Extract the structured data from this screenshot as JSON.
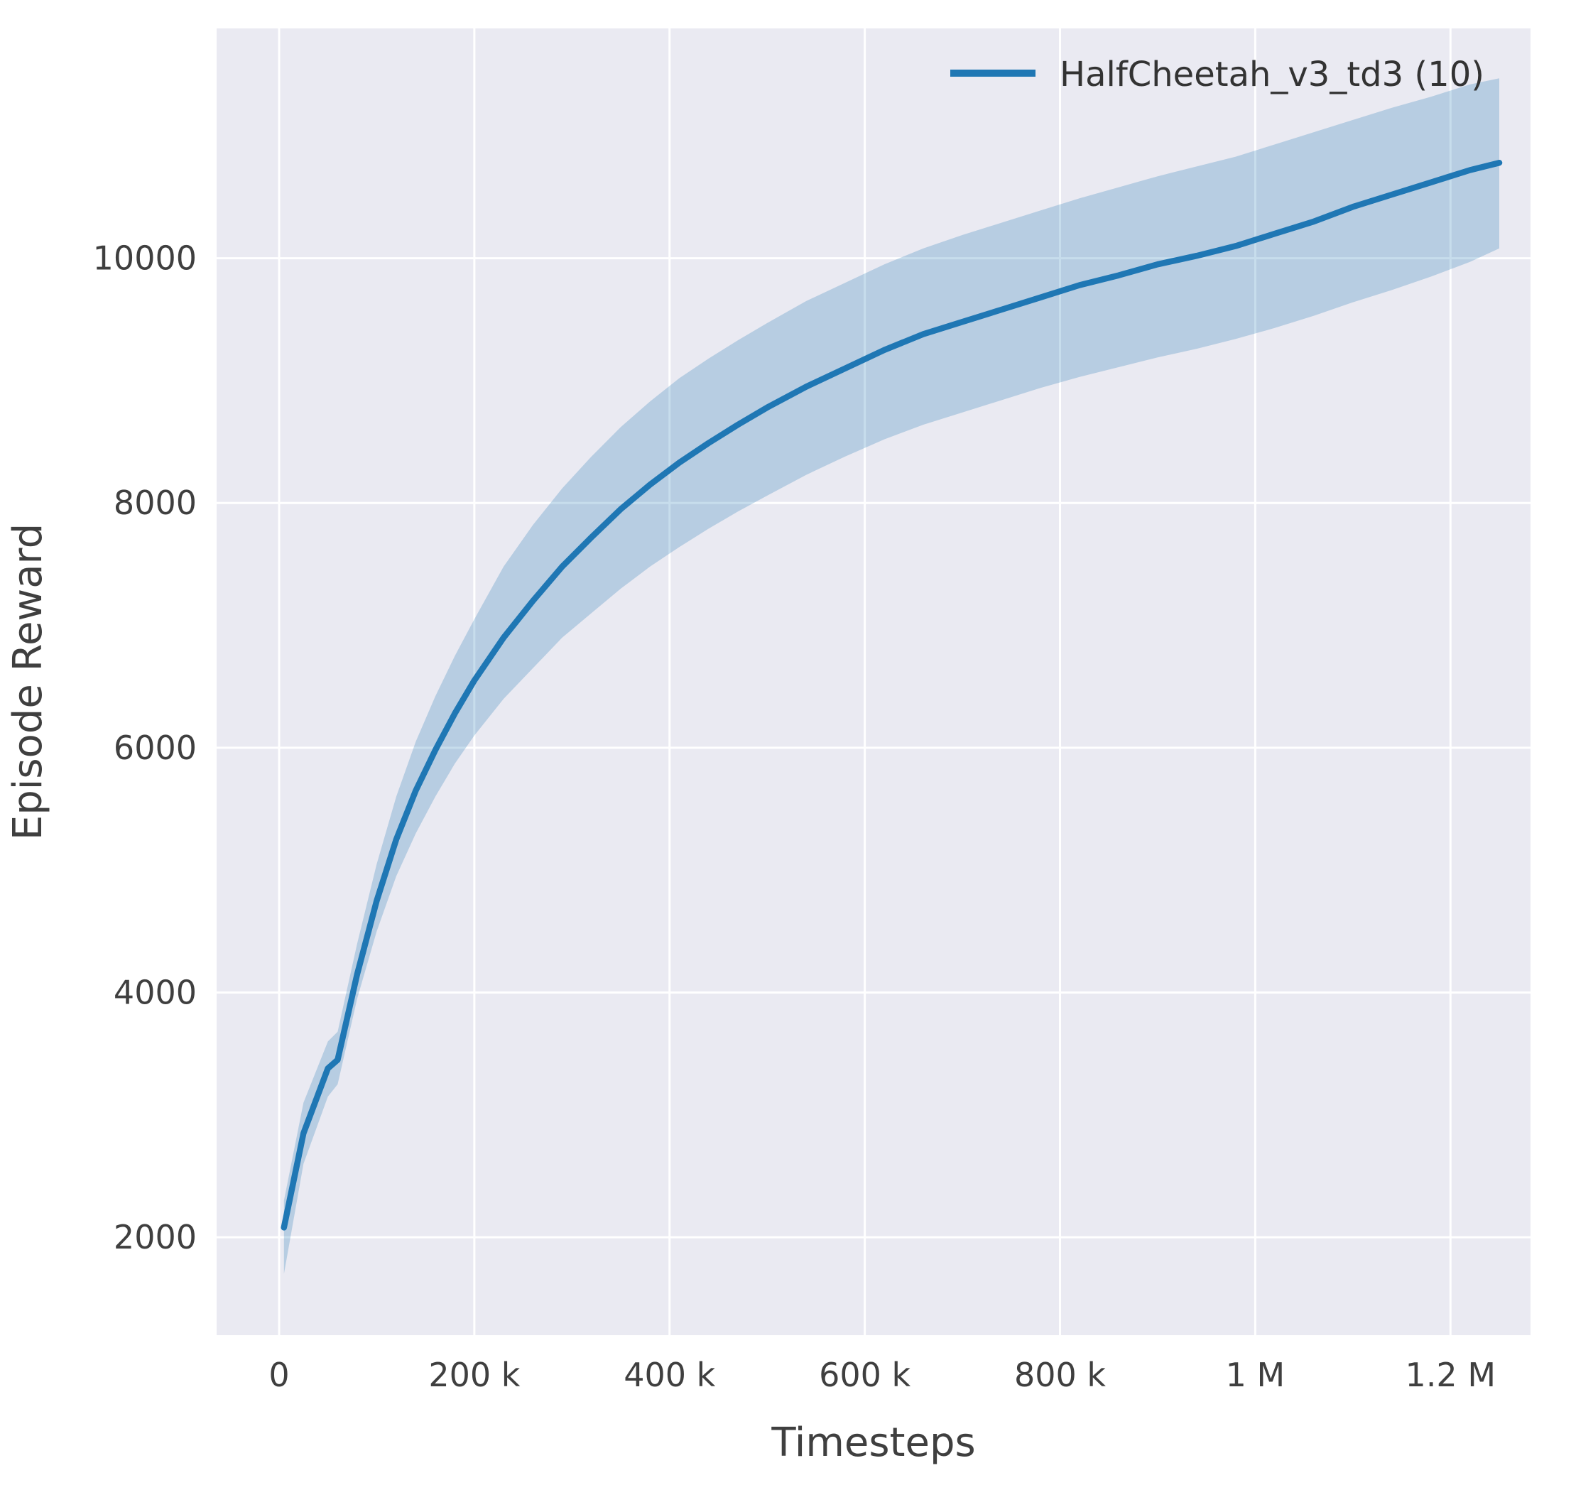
{
  "chart_data": {
    "type": "line",
    "title": "",
    "xlabel": "Timesteps",
    "ylabel": "Episode Reward",
    "xlim": [
      -64000,
      1282000
    ],
    "ylim": [
      1200,
      11878
    ],
    "grid": true,
    "x_ticks": [
      {
        "value": 0,
        "label": "0"
      },
      {
        "value": 200000,
        "label": "200 k"
      },
      {
        "value": 400000,
        "label": "400 k"
      },
      {
        "value": 600000,
        "label": "600 k"
      },
      {
        "value": 800000,
        "label": "800 k"
      },
      {
        "value": 1000000,
        "label": "1 M"
      },
      {
        "value": 1200000,
        "label": "1.2 M"
      }
    ],
    "y_ticks": [
      {
        "value": 2000,
        "label": "2000"
      },
      {
        "value": 4000,
        "label": "4000"
      },
      {
        "value": 6000,
        "label": "6000"
      },
      {
        "value": 8000,
        "label": "8000"
      },
      {
        "value": 10000,
        "label": "10000"
      }
    ],
    "legend": {
      "position": "upper right",
      "entries": [
        {
          "label": "HalfCheetah_v3_td3 (10)",
          "color": "#1f77b4"
        }
      ]
    },
    "style": {
      "plot_bg": "#eaeaf2",
      "grid_color": "#ffffff",
      "line_color": "#1f77b4",
      "band_opacity": 0.25,
      "text_color": "#3f3f3f"
    },
    "series": [
      {
        "name": "HalfCheetah_v3_td3 (10)",
        "color": "#1f77b4",
        "x": [
          5000,
          25000,
          50000,
          60000,
          80000,
          100000,
          120000,
          140000,
          160000,
          180000,
          200000,
          230000,
          260000,
          290000,
          320000,
          350000,
          380000,
          410000,
          440000,
          470000,
          500000,
          540000,
          580000,
          620000,
          660000,
          700000,
          740000,
          780000,
          820000,
          860000,
          900000,
          940000,
          980000,
          1020000,
          1060000,
          1100000,
          1140000,
          1180000,
          1220000,
          1250000
        ],
        "mean": [
          2080,
          2850,
          3380,
          3450,
          4150,
          4750,
          5250,
          5650,
          5980,
          6280,
          6550,
          6900,
          7200,
          7480,
          7720,
          7950,
          8150,
          8330,
          8490,
          8640,
          8780,
          8950,
          9100,
          9250,
          9380,
          9480,
          9580,
          9680,
          9780,
          9860,
          9950,
          10020,
          10100,
          10200,
          10300,
          10420,
          10520,
          10620,
          10720,
          10780
        ],
        "lower": [
          1700,
          2600,
          3150,
          3250,
          3950,
          4500,
          4950,
          5300,
          5600,
          5870,
          6100,
          6400,
          6650,
          6900,
          7100,
          7300,
          7480,
          7640,
          7790,
          7930,
          8060,
          8230,
          8380,
          8520,
          8640,
          8740,
          8840,
          8940,
          9030,
          9110,
          9190,
          9260,
          9340,
          9430,
          9530,
          9640,
          9740,
          9850,
          9970,
          10080
        ],
        "upper": [
          2300,
          3100,
          3600,
          3680,
          4400,
          5050,
          5600,
          6050,
          6420,
          6750,
          7050,
          7480,
          7820,
          8120,
          8380,
          8620,
          8830,
          9020,
          9180,
          9330,
          9470,
          9650,
          9800,
          9950,
          10080,
          10190,
          10290,
          10390,
          10490,
          10580,
          10670,
          10750,
          10830,
          10930,
          11030,
          11130,
          11230,
          11320,
          11420,
          11470
        ]
      }
    ]
  }
}
